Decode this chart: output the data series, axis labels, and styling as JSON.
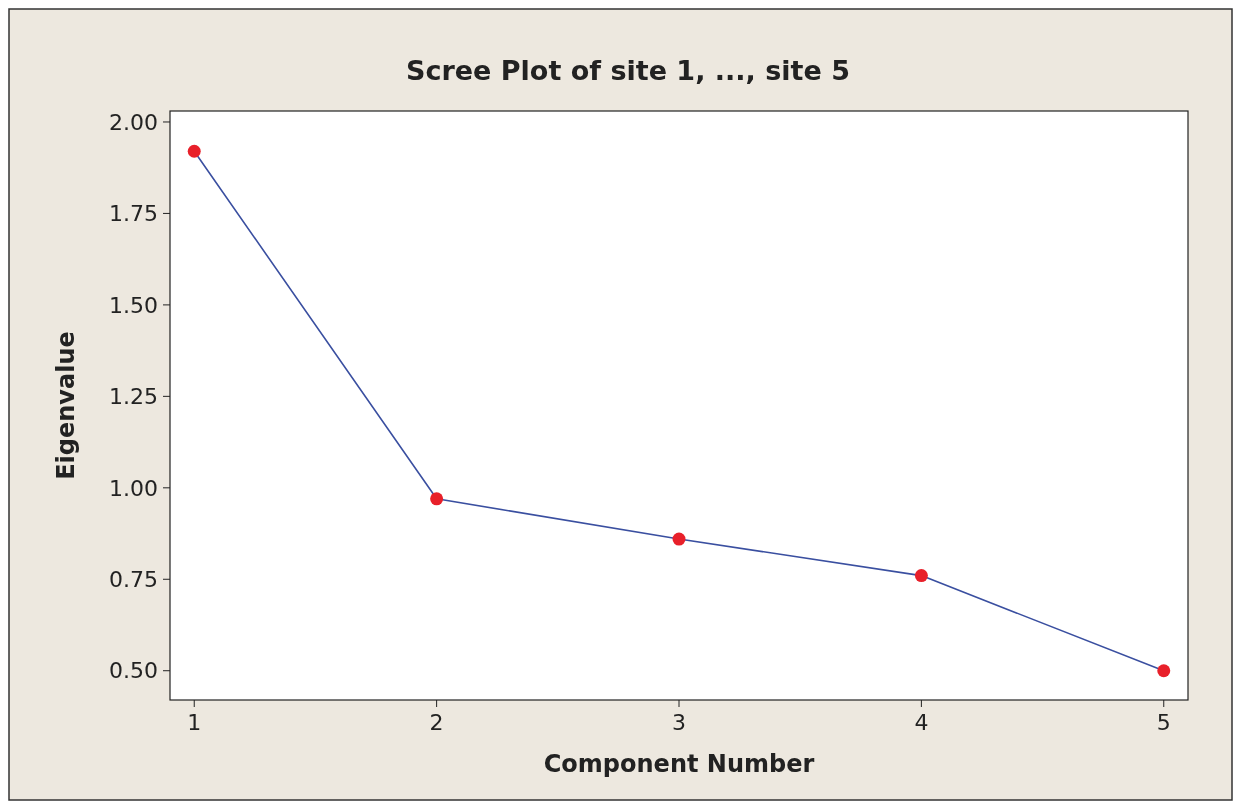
{
  "chart_data": {
    "type": "line",
    "title": "Scree Plot of site 1, ..., site 5",
    "xlabel": "Component Number",
    "ylabel": "Eigenvalue",
    "x": [
      1,
      2,
      3,
      4,
      5
    ],
    "series": [
      {
        "color": "#3a4fa0",
        "colors": [
          "#e8202a",
          "#e8202a",
          "#e8202a",
          "#e8202a",
          "#e8202a"
        ],
        "values": [
          1.92,
          0.97,
          0.86,
          0.76,
          0.5
        ]
      }
    ],
    "xlim": [
      0.9,
      5.1
    ],
    "ylim": [
      0.42,
      2.03
    ],
    "xticks": [
      1,
      2,
      3,
      4,
      5
    ],
    "yticks": [
      {
        "value": 0.5,
        "label": "0.50"
      },
      {
        "value": 0.75,
        "label": "0.75"
      },
      {
        "value": 1,
        "label": "1.00"
      },
      {
        "value": 1.25,
        "label": "1.25"
      },
      {
        "value": 1.5,
        "label": "1.50"
      },
      {
        "value": 1.75,
        "label": "1.75"
      },
      {
        "value": 2,
        "label": "2.00"
      }
    ],
    "marker": "circle",
    "line_style": "solid",
    "grid": false
  }
}
